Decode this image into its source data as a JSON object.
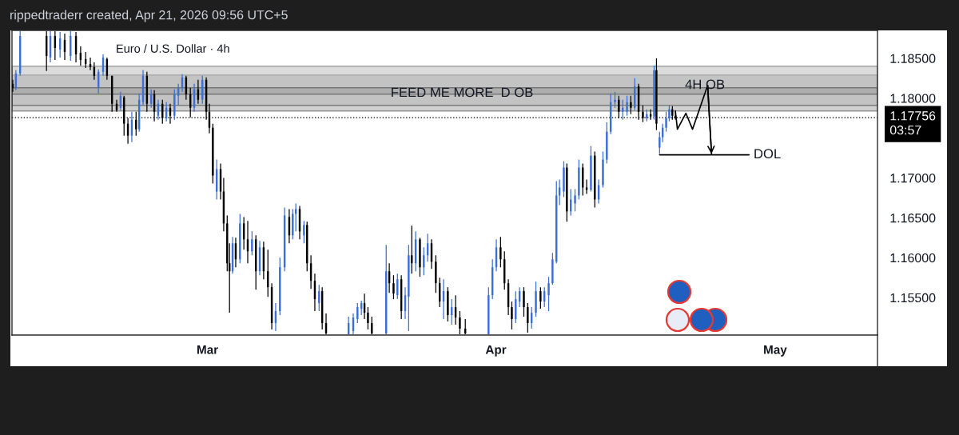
{
  "chart_data": {
    "type": "candlestick",
    "title": "Euro / U.S. Dollar · 4h",
    "annotations": [
      "rippedtraderr created, Apr 21, 2026 09:56 UTC+5",
      {
        "text": "FEED ME MORE",
        "x": "2026-03-20T05:00",
        "y": 1.1806
      },
      {
        "text": "D OB",
        "x": "2026-04-01T01:00",
        "y": 1.1806
      },
      {
        "text": "4H OB",
        "x": "2026-04-20T20:00",
        "y": 1.1816
      },
      {
        "text": "DOL",
        "x": "2026-04-28T05:00",
        "y": 1.1729
      }
    ],
    "x": [
      "2026-02-08T02:00",
      "2026-02-08T10:00",
      "2026-02-08T21:00",
      "2026-02-11T17:00",
      "2026-02-12T03:00",
      "2026-02-12T15:00",
      "2026-02-13T04:00",
      "2026-02-13T16:00",
      "2026-02-14T07:00",
      "2026-02-14T21:00",
      "2026-02-15T09:00",
      "2026-02-15T22:00",
      "2026-02-16T10:00",
      "2026-02-16T20:00",
      "2026-02-17T07:00",
      "2026-02-17T19:00",
      "2026-02-18T05:00",
      "2026-02-18T18:00",
      "2026-02-19T06:00",
      "2026-02-19T16:00",
      "2026-02-20T01:00",
      "2026-02-20T11:00",
      "2026-02-20T21:00",
      "2026-02-21T08:00",
      "2026-02-21T16:00",
      "2026-02-22T02:00",
      "2026-02-22T12:00",
      "2026-02-22T23:00",
      "2026-02-23T07:00",
      "2026-02-23T17:00",
      "2026-02-24T04:00",
      "2026-02-24T14:00",
      "2026-02-25T00:00",
      "2026-02-25T11:00",
      "2026-02-25T21:00",
      "2026-02-26T07:00",
      "2026-02-26T17:00",
      "2026-02-27T04:00",
      "2026-02-27T14:00",
      "2026-02-28T00:00",
      "2026-02-28T11:00",
      "2026-02-28T21:00",
      "2026-03-01T05:00",
      "2026-03-01T14:00",
      "2026-03-02T00:00",
      "2026-03-02T10:00",
      "2026-03-02T18:00",
      "2026-03-03T03:00",
      "2026-03-03T09:00",
      "2026-03-03T17:00",
      "2026-03-04T01:00",
      "2026-03-04T12:00",
      "2026-03-04T22:00",
      "2026-03-05T08:00",
      "2026-03-05T19:00",
      "2026-03-06T05:00",
      "2026-03-06T15:00",
      "2026-03-07T01:00",
      "2026-03-07T12:00",
      "2026-03-07T22:00",
      "2026-03-08T08:00",
      "2026-03-08T19:00",
      "2026-03-09T07:00",
      "2026-03-09T19:00",
      "2026-03-10T04:00",
      "2026-03-10T12:00",
      "2026-03-10T22:00",
      "2026-03-11T09:00",
      "2026-03-11T17:00",
      "2026-03-12T03:00",
      "2026-03-12T13:00",
      "2026-03-13T00:00",
      "2026-03-13T08:00",
      "2026-03-13T18:00",
      "2026-03-16T04:00",
      "2026-03-16T16:00",
      "2026-03-17T03:00",
      "2026-03-17T13:00",
      "2026-03-17T21:00",
      "2026-03-18T06:00",
      "2026-03-18T16:00",
      "2026-03-20T05:00",
      "2026-03-20T13:00",
      "2026-03-21T00:00",
      "2026-03-21T10:00",
      "2026-03-21T20:00",
      "2026-03-22T06:00",
      "2026-03-22T15:00",
      "2026-03-22T23:00",
      "2026-03-23T09:00",
      "2026-03-23T20:00",
      "2026-03-24T06:00",
      "2026-03-24T16:00",
      "2026-03-25T02:00",
      "2026-03-25T13:00",
      "2026-03-25T23:00",
      "2026-03-26T09:00",
      "2026-03-26T20:00",
      "2026-03-27T06:00",
      "2026-03-27T16:00",
      "2026-03-28T03:00",
      "2026-03-28T17:00",
      "2026-03-31T05:00",
      "2026-03-31T15:00",
      "2026-04-01T01:00",
      "2026-04-01T12:00",
      "2026-04-01T22:00",
      "2026-04-02T08:00",
      "2026-04-02T17:00",
      "2026-04-03T03:00",
      "2026-04-03T13:00",
      "2026-04-04T00:00",
      "2026-04-04T10:00",
      "2026-04-04T20:00",
      "2026-04-05T07:00",
      "2026-04-05T19:00",
      "2026-04-06T05:00",
      "2026-04-06T16:00",
      "2026-04-07T02:00",
      "2026-04-07T12:00",
      "2026-04-07T20:00",
      "2026-04-08T07:00",
      "2026-04-08T15:00",
      "2026-04-09T01:00",
      "2026-04-09T12:00",
      "2026-04-09T22:00",
      "2026-04-10T08:00",
      "2026-04-10T18:00",
      "2026-04-11T05:00",
      "2026-04-11T15:00",
      "2026-04-12T01:00",
      "2026-04-12T12:00",
      "2026-04-12T22:00",
      "2026-04-13T08:00",
      "2026-04-13T19:00",
      "2026-04-14T05:00",
      "2026-04-14T15:00",
      "2026-04-15T02:00",
      "2026-04-15T12:00",
      "2026-04-15T22:00",
      "2026-04-16T08:00",
      "2026-04-16T19:00",
      "2026-04-17T05:00",
      "2026-04-17T15:00",
      "2026-04-18T00:00",
      "2026-04-18T06:00",
      "2026-04-18T14:00",
      "2026-04-18T22:00",
      "2026-04-19T07:00",
      "2026-04-19T15:00",
      "2026-04-19T23:00",
      "2026-04-20T07:00"
    ],
    "ohlc": [
      [
        1.1818,
        1.1823,
        1.1808,
        1.1813
      ],
      [
        1.1813,
        1.1835,
        1.181,
        1.1831
      ],
      [
        1.1831,
        1.1884,
        1.1828,
        1.1878
      ],
      [
        1.1878,
        1.1884,
        1.1834,
        1.1853
      ],
      [
        1.1851,
        1.1884,
        1.1845,
        1.1878
      ],
      [
        1.1878,
        1.1884,
        1.1848,
        1.1863
      ],
      [
        1.1861,
        1.1883,
        1.1851,
        1.1875
      ],
      [
        1.1873,
        1.1881,
        1.1848,
        1.1858
      ],
      [
        1.1853,
        1.1884,
        1.1847,
        1.1878
      ],
      [
        1.1878,
        1.1883,
        1.1845,
        1.1855
      ],
      [
        1.1857,
        1.1865,
        1.1841,
        1.1848
      ],
      [
        1.1849,
        1.1858,
        1.1838,
        1.1843
      ],
      [
        1.1843,
        1.1851,
        1.1835,
        1.1839
      ],
      [
        1.1839,
        1.1845,
        1.1823,
        1.1828
      ],
      [
        1.1813,
        1.1836,
        1.1806,
        1.1833
      ],
      [
        1.1833,
        1.1855,
        1.1828,
        1.1851
      ],
      [
        1.1849,
        1.1851,
        1.1823,
        1.1828
      ],
      [
        1.1828,
        1.1828,
        1.1783,
        1.1793
      ],
      [
        1.1793,
        1.1798,
        1.1783,
        1.1785
      ],
      [
        1.1788,
        1.1808,
        1.1785,
        1.1803
      ],
      [
        1.1801,
        1.1803,
        1.1753,
        1.1768
      ],
      [
        1.1768,
        1.1775,
        1.1743,
        1.1753
      ],
      [
        1.1753,
        1.1783,
        1.1745,
        1.1773
      ],
      [
        1.1773,
        1.1783,
        1.1753,
        1.1761
      ],
      [
        1.1761,
        1.1806,
        1.1758,
        1.1798
      ],
      [
        1.1795,
        1.1835,
        1.1791,
        1.1828
      ],
      [
        1.1828,
        1.1833,
        1.1783,
        1.1793
      ],
      [
        1.1793,
        1.1811,
        1.1788,
        1.1805
      ],
      [
        1.1805,
        1.181,
        1.1771,
        1.1783
      ],
      [
        1.1778,
        1.1798,
        1.1773,
        1.1793
      ],
      [
        1.1793,
        1.1798,
        1.1768,
        1.1775
      ],
      [
        1.1775,
        1.1795,
        1.1771,
        1.1788
      ],
      [
        1.1788,
        1.1793,
        1.1768,
        1.1778
      ],
      [
        1.1778,
        1.1811,
        1.1773,
        1.1805
      ],
      [
        1.1803,
        1.1818,
        1.1791,
        1.1813
      ],
      [
        1.1813,
        1.183,
        1.1808,
        1.1826
      ],
      [
        1.1826,
        1.1828,
        1.1798,
        1.1805
      ],
      [
        1.1805,
        1.1813,
        1.1776,
        1.1788
      ],
      [
        1.1788,
        1.1818,
        1.1783,
        1.1811
      ],
      [
        1.1811,
        1.1823,
        1.1793,
        1.1798
      ],
      [
        1.1798,
        1.1828,
        1.1793,
        1.1823
      ],
      [
        1.1823,
        1.1826,
        1.1773,
        1.1783
      ],
      [
        1.1783,
        1.1793,
        1.1756,
        1.1763
      ],
      [
        1.1763,
        1.1768,
        1.1693,
        1.1703
      ],
      [
        1.1683,
        1.1723,
        1.1673,
        1.1711
      ],
      [
        1.1711,
        1.1718,
        1.1673,
        1.1683
      ],
      [
        1.1683,
        1.17,
        1.1633,
        1.1643
      ],
      [
        1.1643,
        1.1653,
        1.1583,
        1.1593
      ],
      [
        1.1593,
        1.1618,
        1.1531,
        1.1583
      ],
      [
        1.1583,
        1.1626,
        1.158,
        1.1618
      ],
      [
        1.1618,
        1.1625,
        1.1588,
        1.1598
      ],
      [
        1.1598,
        1.1655,
        1.1593,
        1.1643
      ],
      [
        1.1643,
        1.1651,
        1.161,
        1.1623
      ],
      [
        1.1623,
        1.1646,
        1.1593,
        1.1608
      ],
      [
        1.1608,
        1.1633,
        1.1603,
        1.1623
      ],
      [
        1.1623,
        1.1628,
        1.156,
        1.1583
      ],
      [
        1.1583,
        1.1621,
        1.1578,
        1.1613
      ],
      [
        1.1613,
        1.162,
        1.1573,
        1.1583
      ],
      [
        1.1583,
        1.161,
        1.1551,
        1.1563
      ],
      [
        1.1563,
        1.1568,
        1.151,
        1.1518
      ],
      [
        1.1518,
        1.1543,
        1.1508,
        1.1533
      ],
      [
        1.1533,
        1.16,
        1.1528,
        1.1588
      ],
      [
        1.1588,
        1.1663,
        1.1583,
        1.1653
      ],
      [
        1.1651,
        1.1661,
        1.1618,
        1.1628
      ],
      [
        1.1628,
        1.1661,
        1.1623,
        1.1655
      ],
      [
        1.1655,
        1.1668,
        1.1633,
        1.1661
      ],
      [
        1.1661,
        1.1665,
        1.1623,
        1.1633
      ],
      [
        1.1628,
        1.1646,
        1.1618,
        1.1641
      ],
      [
        1.1641,
        1.1645,
        1.1583,
        1.1593
      ],
      [
        1.1593,
        1.1603,
        1.1561,
        1.1571
      ],
      [
        1.1571,
        1.158,
        1.1533,
        1.1548
      ],
      [
        1.1543,
        1.1566,
        1.1533,
        1.1558
      ],
      [
        1.1558,
        1.1563,
        1.151,
        1.1518
      ],
      [
        1.1518,
        1.153,
        1.1504,
        1.1505
      ],
      [
        1.1504,
        1.1526,
        1.1504,
        1.1518
      ],
      [
        1.1508,
        1.153,
        1.1504,
        1.1525
      ],
      [
        1.1523,
        1.1543,
        1.1518,
        1.1538
      ],
      [
        1.1536,
        1.1546,
        1.1528,
        1.1543
      ],
      [
        1.1543,
        1.1555,
        1.1523,
        1.1531
      ],
      [
        1.1531,
        1.1538,
        1.151,
        1.1518
      ],
      [
        1.1518,
        1.1526,
        1.1504,
        1.1505
      ],
      [
        1.1505,
        1.1616,
        1.1504,
        1.1583
      ],
      [
        1.1583,
        1.1593,
        1.1556,
        1.1568
      ],
      [
        1.1568,
        1.1578,
        1.1548,
        1.1555
      ],
      [
        1.1553,
        1.158,
        1.1548,
        1.1573
      ],
      [
        1.1573,
        1.1578,
        1.1523,
        1.1533
      ],
      [
        1.1533,
        1.1563,
        1.1523,
        1.1553
      ],
      [
        1.1551,
        1.1616,
        1.1508,
        1.1603
      ],
      [
        1.1603,
        1.164,
        1.158,
        1.1593
      ],
      [
        1.1593,
        1.1633,
        1.1583,
        1.1623
      ],
      [
        1.1623,
        1.1625,
        1.1576,
        1.1588
      ],
      [
        1.1588,
        1.1613,
        1.1578,
        1.1603
      ],
      [
        1.1603,
        1.163,
        1.1595,
        1.1618
      ],
      [
        1.1618,
        1.1623,
        1.1586,
        1.1595
      ],
      [
        1.1595,
        1.1603,
        1.1556,
        1.1568
      ],
      [
        1.1568,
        1.1575,
        1.1538,
        1.1545
      ],
      [
        1.1545,
        1.1573,
        1.1523,
        1.1558
      ],
      [
        1.1558,
        1.1563,
        1.152,
        1.1528
      ],
      [
        1.1528,
        1.1548,
        1.1516,
        1.1538
      ],
      [
        1.1538,
        1.1553,
        1.1516,
        1.1525
      ],
      [
        1.1525,
        1.1533,
        1.1504,
        1.1511
      ],
      [
        1.1511,
        1.1523,
        1.1504,
        1.1505
      ],
      [
        1.1504,
        1.1563,
        1.1504,
        1.1553
      ],
      [
        1.1553,
        1.1598,
        1.1548,
        1.1588
      ],
      [
        1.1588,
        1.1623,
        1.1583,
        1.1613
      ],
      [
        1.1613,
        1.1626,
        1.1588,
        1.1598
      ],
      [
        1.1598,
        1.1608,
        1.156,
        1.1568
      ],
      [
        1.1568,
        1.1573,
        1.1528,
        1.1538
      ],
      [
        1.1538,
        1.1545,
        1.151,
        1.1523
      ],
      [
        1.1523,
        1.1558,
        1.1518,
        1.1548
      ],
      [
        1.1545,
        1.1563,
        1.1538,
        1.1558
      ],
      [
        1.1558,
        1.1563,
        1.1526,
        1.1538
      ],
      [
        1.1538,
        1.1543,
        1.1506,
        1.1518
      ],
      [
        1.1518,
        1.1538,
        1.1511,
        1.1531
      ],
      [
        1.1531,
        1.157,
        1.1526,
        1.1558
      ],
      [
        1.1558,
        1.1563,
        1.1536,
        1.1545
      ],
      [
        1.1545,
        1.1563,
        1.1538,
        1.1558
      ],
      [
        1.1553,
        1.1576,
        1.1533,
        1.1568
      ],
      [
        1.1568,
        1.1606,
        1.1566,
        1.1598
      ],
      [
        1.1595,
        1.1696,
        1.1593,
        1.1678
      ],
      [
        1.1678,
        1.1698,
        1.1666,
        1.1688
      ],
      [
        1.1683,
        1.1721,
        1.1676,
        1.1713
      ],
      [
        1.1713,
        1.1718,
        1.1645,
        1.1658
      ],
      [
        1.1658,
        1.1686,
        1.1653,
        1.1673
      ],
      [
        1.1668,
        1.1686,
        1.1658,
        1.1678
      ],
      [
        1.1678,
        1.1723,
        1.1673,
        1.1713
      ],
      [
        1.1713,
        1.1718,
        1.1678,
        1.1688
      ],
      [
        1.1688,
        1.1698,
        1.168,
        1.1685
      ],
      [
        1.1685,
        1.174,
        1.1683,
        1.1728
      ],
      [
        1.1728,
        1.1733,
        1.1663,
        1.1673
      ],
      [
        1.1673,
        1.1698,
        1.1668,
        1.1691
      ],
      [
        1.1691,
        1.1733,
        1.1688,
        1.1723
      ],
      [
        1.1723,
        1.177,
        1.1718,
        1.1758
      ],
      [
        1.1758,
        1.1806,
        1.1755,
        1.1795
      ],
      [
        1.1795,
        1.1808,
        1.1788,
        1.1798
      ],
      [
        1.1798,
        1.1803,
        1.1775,
        1.1783
      ],
      [
        1.1783,
        1.1798,
        1.1773,
        1.1788
      ],
      [
        1.1783,
        1.1803,
        1.1778,
        1.1795
      ],
      [
        1.1795,
        1.1803,
        1.178,
        1.1788
      ],
      [
        1.1788,
        1.1825,
        1.1785,
        1.1815
      ],
      [
        1.1815,
        1.1818,
        1.1773,
        1.1783
      ],
      [
        1.1783,
        1.1791,
        1.177,
        1.1775
      ],
      [
        1.1775,
        1.1786,
        1.1771,
        1.178
      ],
      [
        1.178,
        1.1786,
        1.1773,
        1.1777
      ],
      [
        1.1777,
        1.1841,
        1.1773,
        1.1835
      ],
      [
        1.1835,
        1.185,
        1.176,
        1.1768
      ],
      [
        1.1738,
        1.1758,
        1.173,
        1.1751
      ],
      [
        1.1751,
        1.1768,
        1.1745,
        1.1763
      ],
      [
        1.1763,
        1.1783,
        1.1758,
        1.1775
      ],
      [
        1.1775,
        1.1791,
        1.1771,
        1.1786
      ],
      [
        1.1786,
        1.179,
        1.1773,
        1.1778
      ],
      [
        1.1778,
        1.1785,
        1.1773,
        1.17756
      ]
    ],
    "colors": [
      "#000000",
      "#3b6fd4",
      "#3b6fd4",
      "#000000",
      "#3b6fd4",
      "#000000",
      "#3b6fd4",
      "#000000",
      "#3b6fd4",
      "#000000",
      "#000000",
      "#000000",
      "#000000",
      "#000000",
      "#3b6fd4",
      "#3b6fd4",
      "#000000",
      "#000000",
      "#000000",
      "#3b6fd4",
      "#000000",
      "#000000",
      "#3b6fd4",
      "#000000",
      "#3b6fd4",
      "#3b6fd4",
      "#000000",
      "#3b6fd4",
      "#000000",
      "#3b6fd4",
      "#000000",
      "#3b6fd4",
      "#000000",
      "#3b6fd4",
      "#3b6fd4",
      "#3b6fd4",
      "#000000",
      "#000000",
      "#3b6fd4",
      "#000000",
      "#3b6fd4",
      "#000000",
      "#000000",
      "#000000",
      "#3b6fd4",
      "#000000",
      "#000000",
      "#000000",
      "#000000",
      "#3b6fd4",
      "#000000",
      "#3b6fd4",
      "#000000",
      "#000000",
      "#3b6fd4",
      "#000000",
      "#3b6fd4",
      "#000000",
      "#000000",
      "#000000",
      "#3b6fd4",
      "#3b6fd4",
      "#3b6fd4",
      "#000000",
      "#3b6fd4",
      "#3b6fd4",
      "#000000",
      "#3b6fd4",
      "#000000",
      "#000000",
      "#000000",
      "#3b6fd4",
      "#000000",
      "#000000",
      "#3b6fd4",
      "#3b6fd4",
      "#3b6fd4",
      "#3b6fd4",
      "#000000",
      "#000000",
      "#000000",
      "#3b6fd4",
      "#000000",
      "#000000",
      "#3b6fd4",
      "#000000",
      "#3b6fd4",
      "#3b6fd4",
      "#000000",
      "#3b6fd4",
      "#000000",
      "#3b6fd4",
      "#3b6fd4",
      "#000000",
      "#000000",
      "#000000",
      "#3b6fd4",
      "#000000",
      "#3b6fd4",
      "#000000",
      "#000000",
      "#000000",
      "#3b6fd4",
      "#3b6fd4",
      "#3b6fd4",
      "#000000",
      "#000000",
      "#000000",
      "#000000",
      "#3b6fd4",
      "#3b6fd4",
      "#000000",
      "#000000",
      "#3b6fd4",
      "#3b6fd4",
      "#000000",
      "#3b6fd4",
      "#3b6fd4",
      "#3b6fd4",
      "#3b6fd4",
      "#3b6fd4",
      "#3b6fd4",
      "#000000",
      "#3b6fd4",
      "#3b6fd4",
      "#3b6fd4",
      "#000000",
      "#000000",
      "#3b6fd4",
      "#000000",
      "#3b6fd4",
      "#3b6fd4",
      "#3b6fd4",
      "#3b6fd4",
      "#3b6fd4",
      "#000000",
      "#3b6fd4",
      "#3b6fd4",
      "#000000",
      "#3b6fd4",
      "#000000",
      "#000000",
      "#3b6fd4",
      "#000000",
      "#3b6fd4",
      "#000000",
      "#3b6fd4",
      "#3b6fd4",
      "#3b6fd4",
      "#3b6fd4",
      "#000000",
      "#000000"
    ],
    "series": [
      {
        "type": "line",
        "color": "#000000",
        "x": [
          "2026-04-20T07:00",
          "2026-04-20T12:00",
          "2026-04-21T10:00",
          "2026-04-22T03:00",
          "2026-04-23T18:00",
          "2026-04-24T04:00"
        ],
        "values": [
          1.1783,
          1.1761,
          1.1781,
          1.1761,
          1.1816,
          1.173
        ]
      },
      {
        "type": "line",
        "color": "#000000",
        "x": [
          "2026-04-18T14:00",
          "2026-04-28T05:00"
        ],
        "values": [
          1.1729,
          1.1729
        ]
      }
    ],
    "bands": [
      {
        "axis": "y",
        "from": 1.1784,
        "to": 1.1829,
        "color": "#a3a3a3"
      },
      {
        "axis": "y",
        "from": 1.1791,
        "to": 1.184,
        "color": "#b8b8b8"
      },
      {
        "axis": "y",
        "from": 1.1805,
        "to": 1.1813,
        "color": "#9a9a9a"
      }
    ],
    "ref_lines": [
      {
        "axis": "y",
        "value": 1.17756,
        "label": "1.17756\n03:57",
        "color": "#000000",
        "line_style": "dotted"
      }
    ],
    "xlim": [
      "2026-02-08",
      "2026-05-12"
    ],
    "xticks": [
      {
        "value": "2026-03-01",
        "label": "Mar"
      },
      {
        "value": "2026-04-01",
        "label": "Apr"
      },
      {
        "value": "2026-05-01",
        "label": "May"
      }
    ],
    "ylim": [
      1.1503,
      1.1885
    ],
    "yticks": [
      {
        "value": 1.155,
        "label": "1.15500"
      },
      {
        "value": 1.16,
        "label": "1.16000"
      },
      {
        "value": 1.165,
        "label": "1.16500"
      },
      {
        "value": 1.17,
        "label": "1.17000"
      },
      {
        "value": 1.18,
        "label": "1.18000"
      },
      {
        "value": 1.185,
        "label": "1.18500"
      }
    ],
    "grid": false
  }
}
